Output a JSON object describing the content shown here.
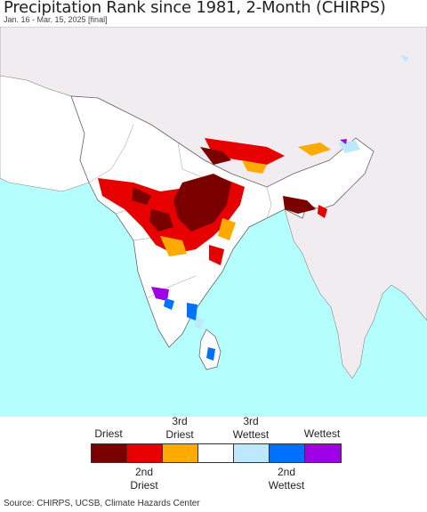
{
  "title": "Precipitation Rank since 1981, 2-Month (CHIRPS)",
  "subtitle": "Jan. 16 - Mar. 15, 2025 [final]",
  "legend": {
    "top_labels": [
      {
        "text": "Driest",
        "index": 0
      },
      {
        "text": "3rd\nDriest",
        "index": 2
      },
      {
        "text": "3rd\nWettest",
        "index": 4
      },
      {
        "text": "Wettest",
        "index": 6
      }
    ],
    "bottom_labels": [
      {
        "text": "2nd\nDriest",
        "index": 1
      },
      {
        "text": "2nd\nWettest",
        "index": 5
      }
    ],
    "colors": [
      "#7a0000",
      "#e60000",
      "#ffaa00",
      "#ffffff",
      "#bee8ff",
      "#0070ff",
      "#a000e6"
    ]
  },
  "source": "Source: CHIRPS, UCSB, Climate Hazards Center",
  "colors": {
    "ocean": "#b4fffe",
    "land": "#ffffff",
    "no_data_land": "#f0ecf0",
    "border": "#666666"
  }
}
